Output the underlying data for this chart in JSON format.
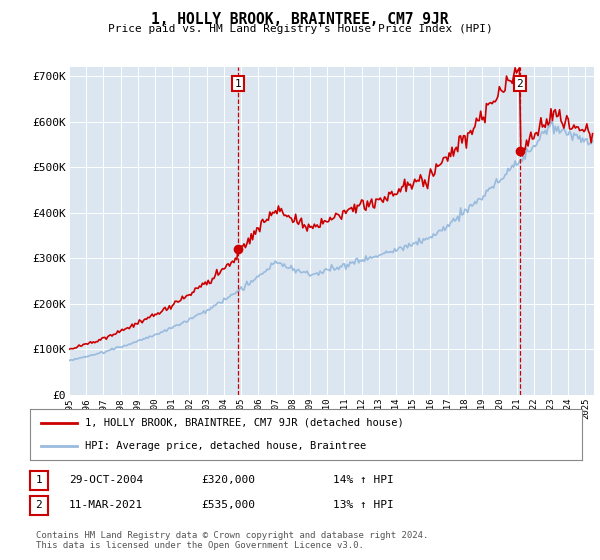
{
  "title": "1, HOLLY BROOK, BRAINTREE, CM7 9JR",
  "subtitle": "Price paid vs. HM Land Registry's House Price Index (HPI)",
  "ylabel_ticks": [
    "£0",
    "£100K",
    "£200K",
    "£300K",
    "£400K",
    "£500K",
    "£600K",
    "£700K"
  ],
  "ytick_values": [
    0,
    100000,
    200000,
    300000,
    400000,
    500000,
    600000,
    700000
  ],
  "ylim": [
    0,
    720000
  ],
  "sale1_year": 2004.83,
  "sale1_price": 320000,
  "sale1_label": "1",
  "sale2_year": 2021.2,
  "sale2_price": 535000,
  "sale2_label": "2",
  "legend_line1": "1, HOLLY BROOK, BRAINTREE, CM7 9JR (detached house)",
  "legend_line2": "HPI: Average price, detached house, Braintree",
  "table_row1": [
    "1",
    "29-OCT-2004",
    "£320,000",
    "14% ↑ HPI"
  ],
  "table_row2": [
    "2",
    "11-MAR-2021",
    "£535,000",
    "13% ↑ HPI"
  ],
  "footer": "Contains HM Land Registry data © Crown copyright and database right 2024.\nThis data is licensed under the Open Government Licence v3.0.",
  "line1_color": "#cc0000",
  "line2_color": "#99bbdd",
  "vline_color": "#cc0000",
  "plot_bg": "#dce6f1"
}
